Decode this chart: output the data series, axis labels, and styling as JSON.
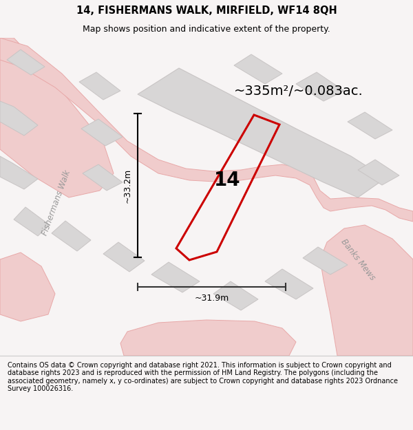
{
  "title_line1": "14, FISHERMANS WALK, MIRFIELD, WF14 8QH",
  "title_line2": "Map shows position and indicative extent of the property.",
  "area_text": "~335m²/~0.083ac.",
  "label_number": "14",
  "dim_vertical": "~33.2m",
  "dim_horizontal": "~31.9m",
  "footer_text": "Contains OS data © Crown copyright and database right 2021. This information is subject to Crown copyright and database rights 2023 and is reproduced with the permission of HM Land Registry. The polygons (including the associated geometry, namely x, y co-ordinates) are subject to Crown copyright and database rights 2023 Ordnance Survey 100026316.",
  "map_bg": "#f7f4f4",
  "plot_color": "#cc0000",
  "building_fill": "#d8d6d6",
  "building_edge": "#c8c4c4",
  "road_fill": "#f0cccc",
  "road_edge": "#e8a8a8",
  "street_label_fishermans": "Fishermans Walk",
  "street_label_banks": "Banks Mews",
  "footer_bg": "#ffffff",
  "title_bg": "#f7f4f4",
  "fig_width": 6.0,
  "fig_height": 6.25
}
